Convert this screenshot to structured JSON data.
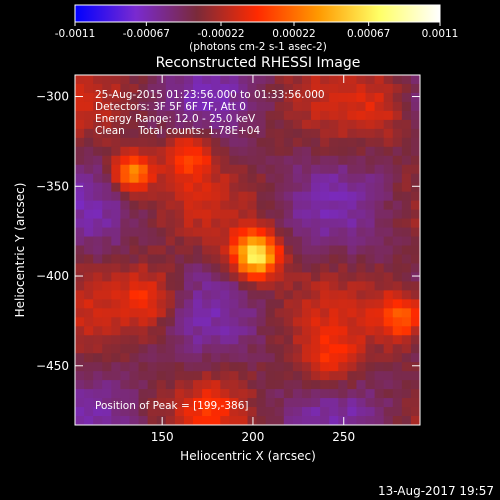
{
  "chart_data": {
    "type": "heatmap",
    "title": "Reconstructed RHESSI Image",
    "xlabel": "Heliocentric X (arcsec)",
    "ylabel": "Heliocentric Y (arcsec)",
    "xlim": [
      102,
      292
    ],
    "ylim": [
      -483,
      -288
    ],
    "xticks": [
      150,
      200,
      250
    ],
    "yticks": [
      -300,
      -350,
      -400,
      -450
    ],
    "colorbar": {
      "range": [
        -0.0011,
        0.0011
      ],
      "tick_values": [
        -0.0011,
        -0.00067,
        -0.00022,
        0.00022,
        0.00067,
        0.0011
      ],
      "tick_labels": [
        "-0.0011",
        "-0.00067",
        "-0.00022",
        "0.00022",
        "0.00067",
        "0.0011"
      ],
      "label": "(photons cm-2 s-1 asec-2)",
      "colors": [
        "#0000ff",
        "#7a2ad0",
        "#7a2a3a",
        "#ff2a00",
        "#ff9900",
        "#ffff66",
        "#ffffff"
      ]
    },
    "annotations": [
      "25-Aug-2015 01:23:56.000 to 01:33:56.000",
      "Detectors: 3F 5F 6F 7F, Att 0",
      "Energy Range: 12.0 - 25.0 keV",
      "Clean    Total counts: 1.78E+04"
    ],
    "peak_label": "Position of Peak = [199,-386]",
    "peak": [
      199,
      -386
    ],
    "blobs": [
      {
        "x": 199,
        "y": -386,
        "amp": 0.0011,
        "sigma": 9
      },
      {
        "x": 131,
        "y": -340,
        "amp": 0.00075,
        "sigma": 8
      },
      {
        "x": 162,
        "y": -330,
        "amp": 0.00045,
        "sigma": 10
      },
      {
        "x": 280,
        "y": -420,
        "amp": 0.0006,
        "sigma": 10
      },
      {
        "x": 140,
        "y": -410,
        "amp": 0.0004,
        "sigma": 12
      },
      {
        "x": 240,
        "y": -445,
        "amp": 0.00035,
        "sigma": 12
      },
      {
        "x": 175,
        "y": -470,
        "amp": 0.0002,
        "sigma": 10
      },
      {
        "x": 270,
        "y": -305,
        "amp": 0.0002,
        "sigma": 12
      }
    ]
  },
  "timestamp": "13-Aug-2017 19:57"
}
